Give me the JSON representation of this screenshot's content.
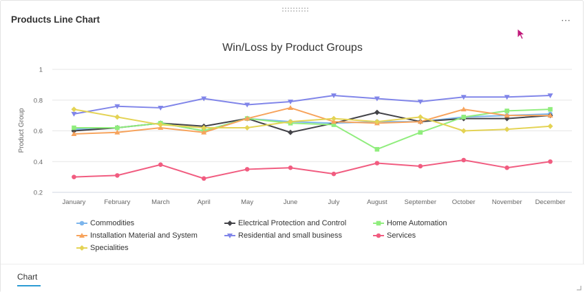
{
  "widget": {
    "title": "Products Line Chart",
    "menu_label": "⋯",
    "tab_label": "Chart"
  },
  "chart_data": {
    "type": "line",
    "title": "Win/Loss by Product Groups",
    "xlabel": "",
    "ylabel": "Product Group",
    "ylim": [
      0.2,
      1
    ],
    "yticks": [
      0.2,
      0.4,
      0.6,
      0.8,
      1
    ],
    "ytick_labels": [
      "0.2",
      "0.4",
      "0.6",
      "0.8",
      "1"
    ],
    "grid": true,
    "legend_position": "bottom",
    "categories": [
      "January",
      "February",
      "March",
      "April",
      "May",
      "June",
      "July",
      "August",
      "September",
      "October",
      "November",
      "December"
    ],
    "series": [
      {
        "name": "Commodities",
        "color": "#7cb5ec",
        "marker": "circle",
        "values": [
          0.61,
          0.62,
          0.65,
          0.6,
          0.68,
          0.66,
          0.65,
          0.66,
          0.66,
          0.69,
          0.7,
          0.71
        ]
      },
      {
        "name": "Electrical Protection and Control",
        "color": "#434348",
        "marker": "diamond",
        "values": [
          0.6,
          0.62,
          0.65,
          0.63,
          0.68,
          0.59,
          0.65,
          0.72,
          0.66,
          0.68,
          0.68,
          0.7
        ]
      },
      {
        "name": "Home Automation",
        "color": "#90ed7d",
        "marker": "square",
        "values": [
          0.62,
          0.62,
          0.65,
          0.6,
          0.68,
          0.65,
          0.64,
          0.48,
          0.59,
          0.69,
          0.73,
          0.74
        ]
      },
      {
        "name": "Installation Material and System",
        "color": "#f7a35c",
        "marker": "triangle",
        "values": [
          0.58,
          0.59,
          0.62,
          0.59,
          0.68,
          0.75,
          0.66,
          0.65,
          0.66,
          0.74,
          0.7,
          0.7
        ]
      },
      {
        "name": "Residential and small business",
        "color": "#8085e9",
        "marker": "triangle-down",
        "values": [
          0.71,
          0.76,
          0.75,
          0.81,
          0.77,
          0.79,
          0.83,
          0.81,
          0.79,
          0.82,
          0.82,
          0.83
        ]
      },
      {
        "name": "Services",
        "color": "#f15c80",
        "marker": "circle",
        "values": [
          0.3,
          0.31,
          0.38,
          0.29,
          0.35,
          0.36,
          0.32,
          0.39,
          0.37,
          0.41,
          0.36,
          0.4
        ]
      },
      {
        "name": "Specialities",
        "color": "#e4d354",
        "marker": "diamond",
        "values": [
          0.74,
          0.69,
          0.64,
          0.62,
          0.62,
          0.66,
          0.68,
          0.66,
          0.69,
          0.6,
          0.61,
          0.63
        ]
      }
    ]
  }
}
